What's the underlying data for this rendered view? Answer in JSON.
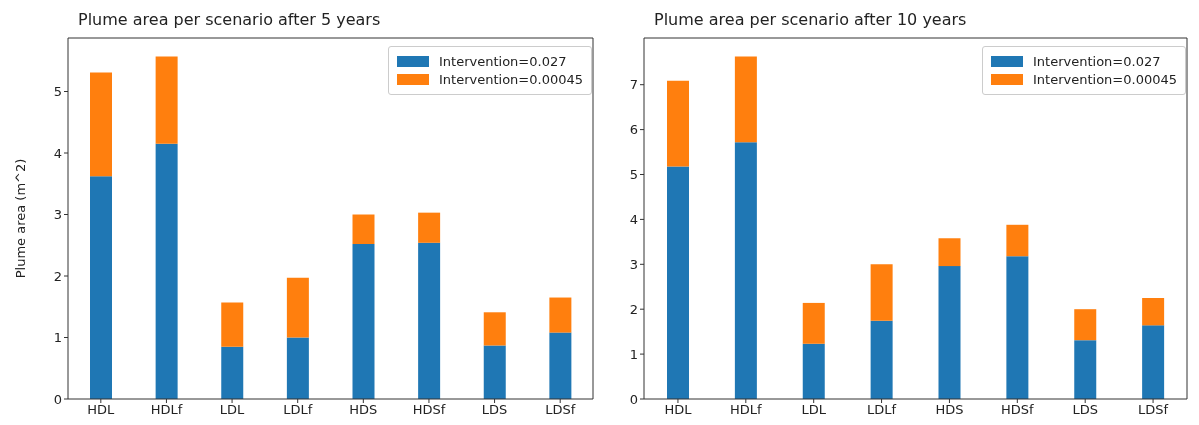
{
  "chart_data": [
    {
      "type": "bar",
      "title": "Plume area per scenario after 5 years",
      "ylabel": "Plume area  (m^2)",
      "categories": [
        "HDL",
        "HDLf",
        "LDL",
        "LDLf",
        "HDS",
        "HDSf",
        "LDS",
        "LDSf"
      ],
      "stacked": true,
      "series": [
        {
          "name": "Intervention=0.027",
          "color": "#1f77b4",
          "values": [
            3.62,
            4.15,
            0.85,
            1.0,
            2.52,
            2.54,
            0.87,
            1.08
          ]
        },
        {
          "name": "Intervention=0.00045",
          "color": "#ff7f0e",
          "values": [
            1.69,
            1.42,
            0.72,
            0.97,
            0.48,
            0.49,
            0.54,
            0.57
          ]
        }
      ],
      "ylim": [
        0,
        5.87
      ],
      "yticks": [
        0,
        1,
        2,
        3,
        4,
        5
      ],
      "grid": false,
      "legend": "top right"
    },
    {
      "type": "bar",
      "title": "Plume area per scenario after 10 years",
      "categories": [
        "HDL",
        "HDLf",
        "LDL",
        "LDLf",
        "HDS",
        "HDSf",
        "LDS",
        "LDSf"
      ],
      "stacked": true,
      "series": [
        {
          "name": "Intervention=0.027",
          "color": "#1f77b4",
          "values": [
            5.18,
            5.72,
            1.23,
            1.74,
            2.96,
            3.18,
            1.31,
            1.64
          ]
        },
        {
          "name": "Intervention=0.00045",
          "color": "#ff7f0e",
          "values": [
            1.91,
            1.91,
            0.91,
            1.26,
            0.62,
            0.7,
            0.69,
            0.61
          ]
        }
      ],
      "ylim": [
        0,
        8.04
      ],
      "yticks": [
        0,
        1,
        2,
        3,
        4,
        5,
        6,
        7
      ],
      "grid": false,
      "legend": "top right"
    }
  ]
}
